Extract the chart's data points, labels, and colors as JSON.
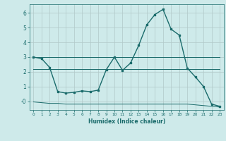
{
  "xlabel": "Humidex (Indice chaleur)",
  "background_color": "#ceeaea",
  "grid_color": "#b0c8c8",
  "line_color": "#1a6b6b",
  "x_ticks": [
    0,
    1,
    2,
    3,
    4,
    5,
    6,
    7,
    8,
    9,
    10,
    11,
    12,
    13,
    14,
    15,
    16,
    17,
    18,
    19,
    20,
    21,
    22,
    23
  ],
  "x_tick_labels": [
    "0",
    "1",
    "2",
    "3",
    "4",
    "5",
    "6",
    "7",
    "8",
    "9",
    "10",
    "11",
    "12",
    "13",
    "14",
    "15",
    "16",
    "17",
    "18",
    "19",
    "20",
    "21",
    "22",
    "23"
  ],
  "y_ticks": [
    6,
    5,
    4,
    3,
    2,
    1,
    "-0"
  ],
  "y_tick_vals": [
    6,
    5,
    4,
    3,
    2,
    1,
    0
  ],
  "ylim": [
    -0.6,
    6.6
  ],
  "xlim": [
    -0.5,
    23.5
  ],
  "series": [
    {
      "x": [
        0,
        1,
        2,
        3,
        4,
        5,
        6,
        7,
        8,
        9,
        10,
        11,
        12,
        13,
        14,
        15,
        16,
        17,
        18,
        19,
        20,
        21,
        22,
        23
      ],
      "y": [
        3.0,
        2.9,
        2.3,
        0.65,
        0.55,
        0.6,
        0.7,
        0.65,
        0.75,
        2.15,
        3.0,
        2.1,
        2.6,
        3.8,
        5.2,
        5.9,
        6.25,
        4.9,
        4.5,
        2.25,
        1.65,
        1.0,
        -0.2,
        -0.35
      ],
      "marker": "s",
      "markersize": 1.8,
      "linewidth": 1.0,
      "has_marker": true
    },
    {
      "x": [
        0,
        1,
        2,
        3,
        4,
        5,
        6,
        7,
        8,
        9,
        10,
        11,
        12,
        13,
        14,
        15,
        16,
        17,
        18,
        19,
        20,
        21,
        22,
        23
      ],
      "y": [
        3.0,
        3.0,
        3.0,
        3.0,
        3.0,
        3.0,
        3.0,
        3.0,
        3.0,
        3.0,
        3.0,
        3.0,
        3.0,
        3.0,
        3.0,
        3.0,
        3.0,
        3.0,
        3.0,
        3.0,
        3.0,
        3.0,
        3.0,
        3.0
      ],
      "marker": null,
      "markersize": 0,
      "linewidth": 0.7,
      "has_marker": false
    },
    {
      "x": [
        0,
        1,
        2,
        3,
        4,
        5,
        6,
        7,
        8,
        9,
        10,
        11,
        12,
        13,
        14,
        15,
        16,
        17,
        18,
        19,
        20,
        21,
        22,
        23
      ],
      "y": [
        2.2,
        2.2,
        2.2,
        2.2,
        2.2,
        2.2,
        2.2,
        2.2,
        2.2,
        2.2,
        2.2,
        2.2,
        2.2,
        2.2,
        2.2,
        2.2,
        2.2,
        2.2,
        2.2,
        2.2,
        2.2,
        2.2,
        2.2,
        2.2
      ],
      "marker": null,
      "markersize": 0,
      "linewidth": 0.7,
      "has_marker": false
    },
    {
      "x": [
        0,
        1,
        2,
        3,
        4,
        5,
        6,
        7,
        8,
        9,
        10,
        11,
        12,
        13,
        14,
        15,
        16,
        17,
        18,
        19,
        20,
        21,
        22,
        23
      ],
      "y": [
        -0.05,
        -0.1,
        -0.15,
        -0.15,
        -0.2,
        -0.2,
        -0.2,
        -0.2,
        -0.2,
        -0.2,
        -0.2,
        -0.2,
        -0.2,
        -0.2,
        -0.2,
        -0.2,
        -0.2,
        -0.2,
        -0.2,
        -0.2,
        -0.25,
        -0.3,
        -0.35,
        -0.4
      ],
      "marker": null,
      "markersize": 0,
      "linewidth": 0.7,
      "has_marker": false
    }
  ]
}
